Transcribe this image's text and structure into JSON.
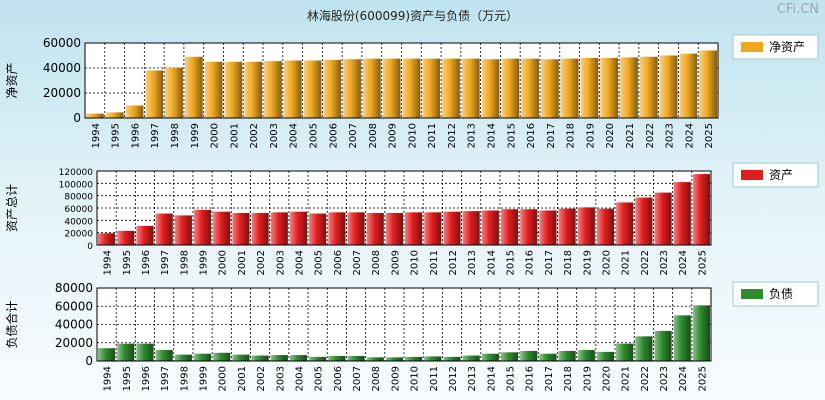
{
  "title": "林海股份(600099)资产与负债（万元）",
  "watermark": "CFi.CN",
  "colors": {
    "bg_top": "#bfe3ef",
    "net": "#f0a820",
    "asset": "#e11e1e",
    "liab": "#2e8b2e"
  },
  "chart_data": [
    {
      "type": "bar",
      "name": "net-assets",
      "ylabel": "净资产",
      "legend": "净资产",
      "color": "#f0a820",
      "ylim": [
        0,
        60000
      ],
      "yticks": [
        0,
        20000,
        40000,
        60000
      ],
      "categories": [
        "1994",
        "1995",
        "1996",
        "1997",
        "1998",
        "1999",
        "2000",
        "2001",
        "2002",
        "2003",
        "2004",
        "2005",
        "2006",
        "2007",
        "2008",
        "2009",
        "2010",
        "2011",
        "2012",
        "2013",
        "2014",
        "2015",
        "2016",
        "2017",
        "2018",
        "2019",
        "2020",
        "2021",
        "2022",
        "2023",
        "2024",
        "2025"
      ],
      "values": [
        3500,
        4500,
        10000,
        38000,
        40000,
        49000,
        45000,
        45000,
        45000,
        45500,
        46000,
        46000,
        46500,
        47000,
        47500,
        47500,
        47500,
        47500,
        47500,
        47500,
        47000,
        47500,
        47500,
        47000,
        47500,
        48000,
        48000,
        48500,
        49000,
        50000,
        51500,
        54000
      ]
    },
    {
      "type": "bar",
      "name": "total-assets",
      "ylabel": "资产总计",
      "legend": "资产",
      "color": "#e11e1e",
      "ylim": [
        0,
        120000
      ],
      "yticks": [
        0,
        20000,
        40000,
        60000,
        80000,
        100000,
        120000
      ],
      "categories": [
        "1994",
        "1995",
        "1996",
        "1997",
        "1998",
        "1999",
        "2000",
        "2001",
        "2002",
        "2003",
        "2004",
        "2005",
        "2006",
        "2007",
        "2008",
        "2009",
        "2010",
        "2011",
        "2012",
        "2013",
        "2014",
        "2015",
        "2016",
        "2017",
        "2018",
        "2019",
        "2020",
        "2021",
        "2022",
        "2023",
        "2024",
        "2025"
      ],
      "values": [
        19000,
        23000,
        31000,
        51000,
        48000,
        57000,
        54000,
        52000,
        52000,
        53000,
        54000,
        51000,
        53000,
        53000,
        52000,
        52000,
        53000,
        53000,
        54000,
        55000,
        56000,
        58000,
        58000,
        56000,
        59000,
        61000,
        59000,
        69000,
        77000,
        85000,
        102000,
        115000
      ]
    },
    {
      "type": "bar",
      "name": "total-liabilities",
      "ylabel": "负债合计",
      "legend": "负债",
      "color": "#2e8b2e",
      "ylim": [
        0,
        80000
      ],
      "yticks": [
        0,
        20000,
        40000,
        60000,
        80000
      ],
      "categories": [
        "1994",
        "1995",
        "1996",
        "1997",
        "1998",
        "1999",
        "2000",
        "2001",
        "2002",
        "2003",
        "2004",
        "2005",
        "2006",
        "2007",
        "2008",
        "2009",
        "2010",
        "2011",
        "2012",
        "2013",
        "2014",
        "2015",
        "2016",
        "2017",
        "2018",
        "2019",
        "2020",
        "2021",
        "2022",
        "2023",
        "2024",
        "2025"
      ],
      "values": [
        14000,
        19000,
        19000,
        12000,
        7000,
        8000,
        9000,
        7000,
        6000,
        6500,
        6500,
        4500,
        5500,
        5500,
        4000,
        4000,
        4500,
        5000,
        4500,
        6000,
        8000,
        9500,
        11000,
        8000,
        11000,
        12000,
        10000,
        19000,
        27000,
        33000,
        50000,
        61000
      ]
    }
  ]
}
